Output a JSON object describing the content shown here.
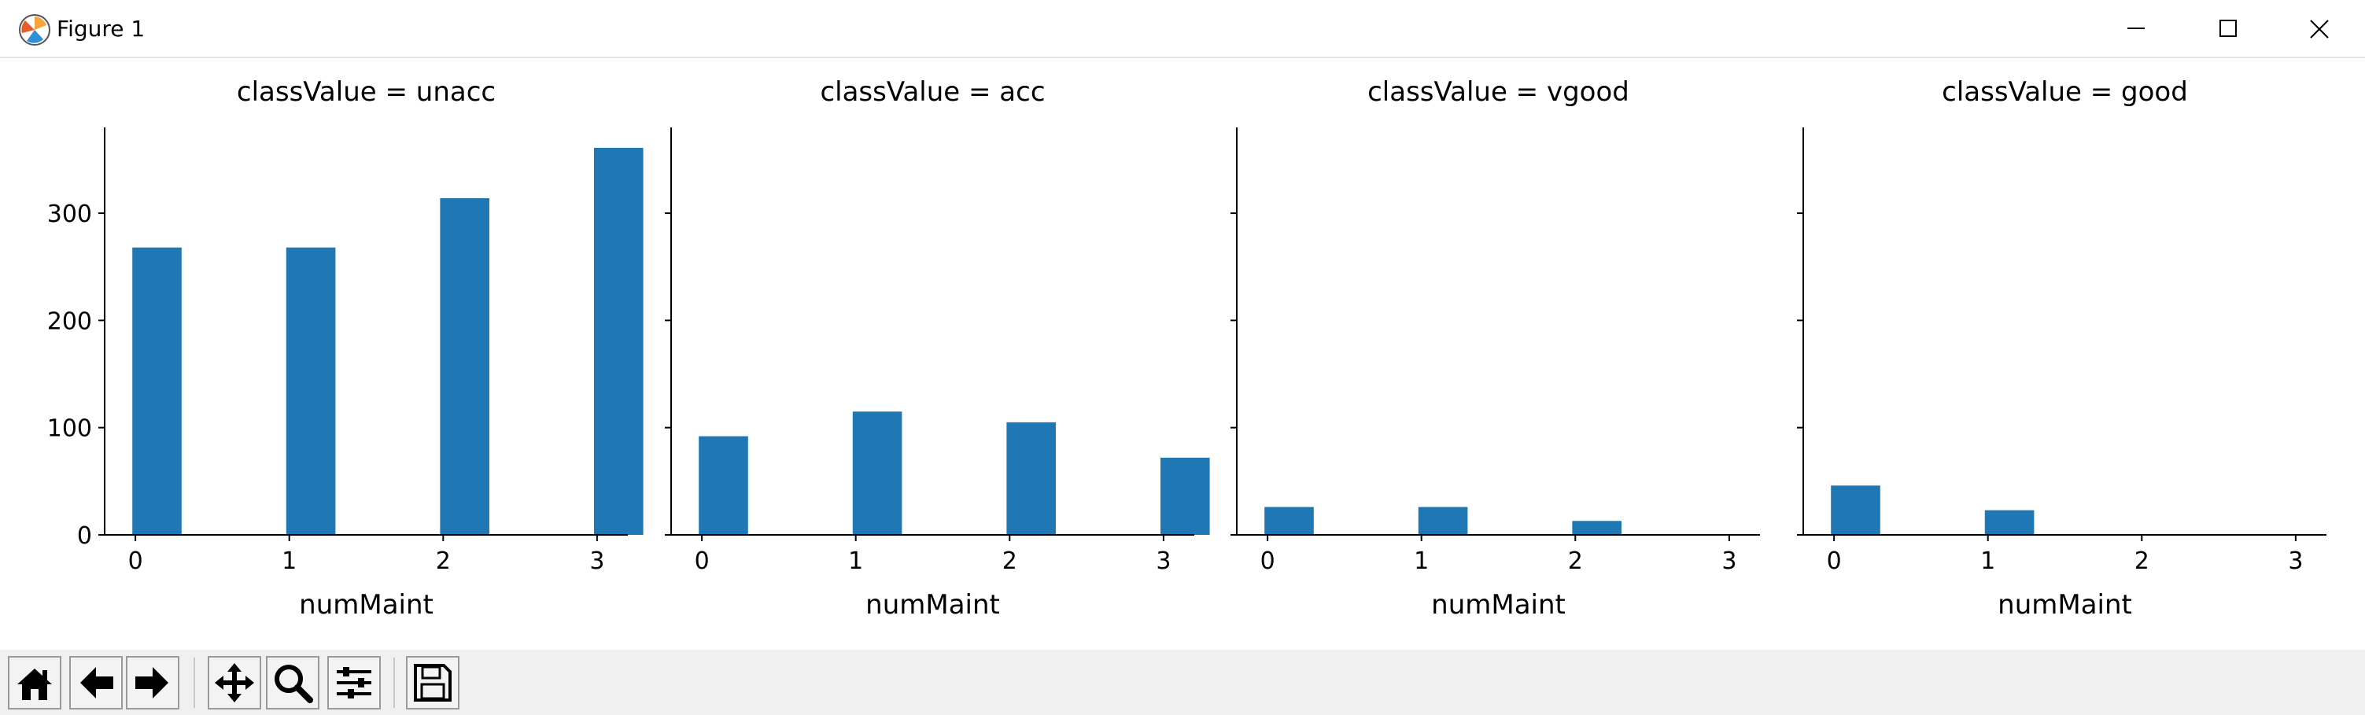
{
  "window": {
    "title": "Figure 1",
    "icons": {
      "app": "matplotlib-icon",
      "minimize": "minimize-icon",
      "maximize": "maximize-icon",
      "close": "close-icon"
    }
  },
  "toolbar": {
    "buttons": [
      {
        "name": "home-button",
        "icon": "home-icon"
      },
      {
        "name": "back-button",
        "icon": "arrow-left-icon"
      },
      {
        "name": "forward-button",
        "icon": "arrow-right-icon"
      },
      {
        "name": "pan-button",
        "icon": "move-icon"
      },
      {
        "name": "zoom-button",
        "icon": "zoom-icon"
      },
      {
        "name": "subplots-button",
        "icon": "sliders-icon"
      },
      {
        "name": "save-button",
        "icon": "save-icon"
      }
    ]
  },
  "chart_data": [
    {
      "type": "bar",
      "title": "classValue = unacc",
      "xlabel": "numMaint",
      "ylabel": "",
      "x": [
        0,
        1,
        2,
        3
      ],
      "values": [
        268,
        268,
        314,
        361
      ],
      "xlim": [
        -0.2,
        3.2
      ],
      "ylim": [
        0,
        380
      ],
      "xticks": [
        "0",
        "1",
        "2",
        "3"
      ],
      "yticks": [
        "0",
        "100",
        "200",
        "300"
      ],
      "color": "#1f77b4",
      "grid": false
    },
    {
      "type": "bar",
      "title": "classValue = acc",
      "xlabel": "numMaint",
      "ylabel": "",
      "x": [
        0,
        1,
        2,
        3
      ],
      "values": [
        92,
        115,
        105,
        72
      ],
      "xlim": [
        -0.2,
        3.2
      ],
      "ylim": [
        0,
        380
      ],
      "xticks": [
        "0",
        "1",
        "2",
        "3"
      ],
      "yticks": [],
      "color": "#1f77b4",
      "grid": false
    },
    {
      "type": "bar",
      "title": "classValue = vgood",
      "xlabel": "numMaint",
      "ylabel": "",
      "x": [
        0,
        1,
        2
      ],
      "values": [
        26,
        26,
        13
      ],
      "xlim": [
        -0.2,
        3.2
      ],
      "ylim": [
        0,
        380
      ],
      "xticks": [
        "0",
        "1",
        "2",
        "3"
      ],
      "yticks": [],
      "color": "#1f77b4",
      "grid": false
    },
    {
      "type": "bar",
      "title": "classValue = good",
      "xlabel": "numMaint",
      "ylabel": "",
      "x": [
        0,
        1
      ],
      "values": [
        46,
        23
      ],
      "xlim": [
        -0.2,
        3.2
      ],
      "ylim": [
        0,
        380
      ],
      "xticks": [
        "0",
        "1",
        "2",
        "3"
      ],
      "yticks": [],
      "color": "#1f77b4",
      "grid": false
    }
  ]
}
